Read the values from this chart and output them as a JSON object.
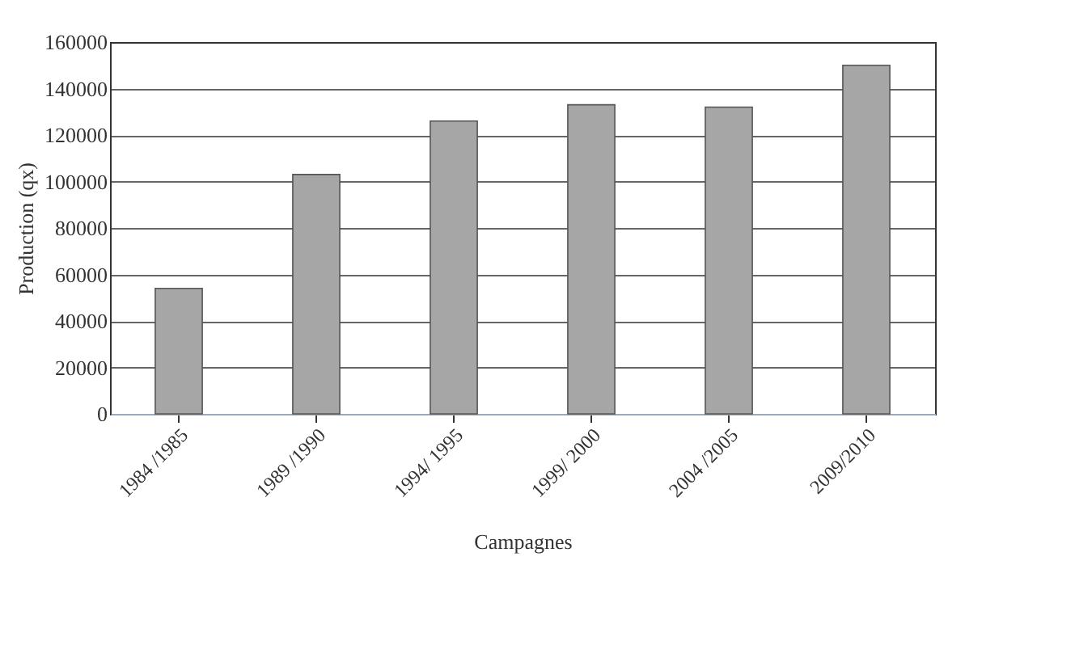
{
  "chart_data": {
    "type": "bar",
    "xlabel": "Campagnes",
    "ylabel": "Production (qx)",
    "categories": [
      "1984 /1985",
      "1989 /1990",
      "1994/ 1995",
      "1999/ 2000",
      "2004 /2005",
      "2009/2010"
    ],
    "values": [
      54000,
      103000,
      126000,
      133000,
      132000,
      150000
    ],
    "color": "#a6a6a6",
    "ylim": [
      0,
      160000
    ],
    "yticks": [
      0,
      20000,
      40000,
      60000,
      80000,
      100000,
      120000,
      140000,
      160000
    ],
    "grid": true
  }
}
